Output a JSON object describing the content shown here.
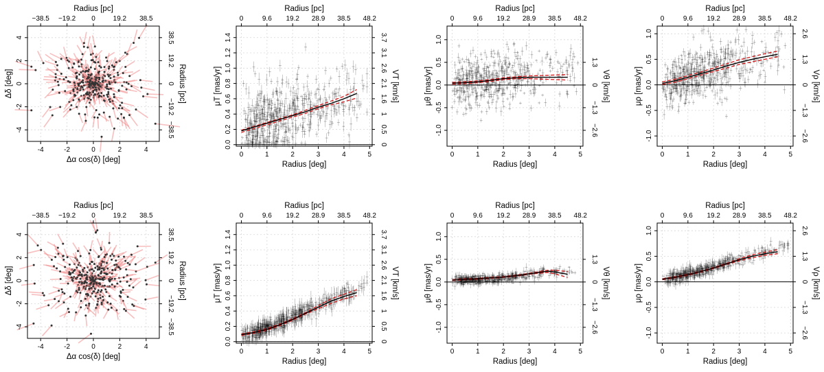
{
  "chart_data": [
    {
      "id": "top-sky",
      "type": "scatter",
      "xlabel": "Δα cos(δ) [deg]",
      "ylabel": "Δδ [deg]",
      "top_label": "Radius [pc]",
      "right_label": "Radius [pc]",
      "xlim": [
        -5,
        5
      ],
      "ylim": [
        -5,
        5
      ],
      "xticks": [
        "-4",
        "-2",
        "0",
        "2",
        "4"
      ],
      "xtick_vals": [
        -4,
        -2,
        0,
        2,
        4
      ],
      "yticks": [
        "-4",
        "-2",
        "0",
        "2",
        "4"
      ],
      "ytick_vals": [
        -4,
        -2,
        0,
        2,
        4
      ],
      "top_ticks": [
        "−38.5",
        "−19.2",
        "0",
        "19.2",
        "38.5"
      ],
      "top_tick_vals": [
        -4,
        -2,
        0,
        2,
        4
      ],
      "right_ticks": [
        "−38.5",
        "−19.2",
        "0",
        "19.2",
        "38.5"
      ],
      "right_tick_vals": [
        -4,
        -2,
        0,
        2,
        4
      ],
      "arrow_color": "#f08a8a",
      "point_color": "#333333",
      "seed": 11,
      "n_points": 380,
      "arrow_scale": 0.55
    },
    {
      "id": "top-mut",
      "type": "scatter",
      "xlabel": "Radius [deg]",
      "ylabel": "μT [mas/yr]",
      "top_label": "Radius [pc]",
      "right_label": "VT [km/s]",
      "xlim": [
        -0.2,
        5.1
      ],
      "ylim": [
        -0.02,
        1.55
      ],
      "xticks": [
        "0",
        "1",
        "2",
        "3",
        "4",
        "5"
      ],
      "xtick_vals": [
        0,
        1,
        2,
        3,
        4,
        5
      ],
      "yticks": [
        "0.0",
        "0.2",
        "0.4",
        "0.6",
        "0.8",
        "1.0",
        "1.2",
        "1.4"
      ],
      "ytick_vals": [
        0,
        0.2,
        0.4,
        0.6,
        0.8,
        1.0,
        1.2,
        1.4
      ],
      "top_ticks": [
        "0",
        "9.6",
        "19.2",
        "28.9",
        "38.5",
        "48.2"
      ],
      "top_tick_vals": [
        0,
        1,
        2,
        3,
        4,
        5
      ],
      "right_ticks": [
        "0",
        "0.5",
        "1",
        "1.6",
        "2.1",
        "2.6",
        "3.1",
        "3.7"
      ],
      "right_tick_vals": [
        0,
        0.2,
        0.4,
        0.6,
        0.8,
        1.0,
        1.2,
        1.4
      ],
      "hline": 0,
      "fit_x": [
        0,
        0.5,
        1,
        1.5,
        2,
        2.5,
        3,
        3.5,
        4,
        4.5
      ],
      "fit_black": [
        0.18,
        0.23,
        0.28,
        0.33,
        0.38,
        0.43,
        0.49,
        0.54,
        0.6,
        0.67
      ],
      "fit_red_upper": [
        0.19,
        0.24,
        0.29,
        0.34,
        0.39,
        0.45,
        0.51,
        0.57,
        0.63,
        0.72
      ],
      "fit_red_lower": [
        0.16,
        0.21,
        0.26,
        0.31,
        0.36,
        0.41,
        0.47,
        0.52,
        0.56,
        0.61
      ],
      "seed": 23,
      "n_points": 520,
      "scatter": 0.22,
      "err": 0.05,
      "mode": "lin",
      "base": 0.2,
      "slope": 0.1,
      "ymin_clip": 0.0
    },
    {
      "id": "top-mutheta",
      "type": "scatter",
      "xlabel": "Radius [deg]",
      "ylabel": "μθ [mas/yr]",
      "top_label": "Radius [pc]",
      "right_label": "Vθ [km/s]",
      "xlim": [
        -0.2,
        5.1
      ],
      "ylim": [
        -1.35,
        1.3
      ],
      "xticks": [
        "0",
        "1",
        "2",
        "3",
        "4",
        "5"
      ],
      "xtick_vals": [
        0,
        1,
        2,
        3,
        4,
        5
      ],
      "yticks": [
        "-1.0",
        "-0.5",
        "0.0",
        "0.5",
        "1.0"
      ],
      "ytick_vals": [
        -1.0,
        -0.5,
        0,
        0.5,
        1.0
      ],
      "top_ticks": [
        "0",
        "9.6",
        "19.2",
        "28.9",
        "38.5",
        "48.2"
      ],
      "top_tick_vals": [
        0,
        1,
        2,
        3,
        4,
        5
      ],
      "right_ticks": [
        "−2.6",
        "−1.3",
        "0",
        "1.3"
      ],
      "right_tick_vals": [
        -1.0,
        -0.5,
        0,
        0.5
      ],
      "hline": 0,
      "fit_x": [
        0,
        0.5,
        1,
        1.5,
        2,
        2.5,
        3,
        3.5,
        4,
        4.5
      ],
      "fit_black": [
        0.04,
        0.05,
        0.07,
        0.1,
        0.14,
        0.16,
        0.17,
        0.17,
        0.17,
        0.17
      ],
      "fit_red_upper": [
        0.06,
        0.07,
        0.09,
        0.12,
        0.16,
        0.18,
        0.2,
        0.21,
        0.22,
        0.23
      ],
      "fit_red_lower": [
        0.02,
        0.03,
        0.05,
        0.08,
        0.12,
        0.14,
        0.14,
        0.13,
        0.12,
        0.11
      ],
      "seed": 37,
      "n_points": 520,
      "scatter": 0.3,
      "err": 0.06,
      "mode": "theta",
      "base": 0.05,
      "slope": 0.03,
      "ymin_clip": -1.3
    },
    {
      "id": "top-murho",
      "type": "scatter",
      "xlabel": "Radius [deg]",
      "ylabel": "μρ [mas/yr]",
      "top_label": "Radius [pc]",
      "right_label": "Vρ [km/s]",
      "xlim": [
        -0.2,
        5.1
      ],
      "ylim": [
        -1.2,
        1.15
      ],
      "xticks": [
        "0",
        "1",
        "2",
        "3",
        "4",
        "5"
      ],
      "xtick_vals": [
        0,
        1,
        2,
        3,
        4,
        5
      ],
      "yticks": [
        "-1.0",
        "-0.5",
        "0.0",
        "0.5",
        "1.0"
      ],
      "ytick_vals": [
        -1.0,
        -0.5,
        0,
        0.5,
        1.0
      ],
      "top_ticks": [
        "0",
        "9.6",
        "19.2",
        "28.9",
        "38.5",
        "48.2"
      ],
      "top_tick_vals": [
        0,
        1,
        2,
        3,
        4,
        5
      ],
      "right_ticks": [
        "−2.6",
        "−1.3",
        "0",
        "1.3",
        "2.6"
      ],
      "right_tick_vals": [
        -1.0,
        -0.5,
        0,
        0.5,
        1.0
      ],
      "hline": 0,
      "fit_x": [
        0,
        0.5,
        1,
        1.5,
        2,
        2.5,
        3,
        3.5,
        4,
        4.5
      ],
      "fit_black": [
        0.03,
        0.08,
        0.15,
        0.22,
        0.29,
        0.37,
        0.44,
        0.5,
        0.55,
        0.6
      ],
      "fit_red_upper": [
        0.06,
        0.11,
        0.18,
        0.25,
        0.33,
        0.41,
        0.49,
        0.55,
        0.61,
        0.66
      ],
      "fit_red_lower": [
        0.01,
        0.05,
        0.12,
        0.19,
        0.26,
        0.33,
        0.4,
        0.45,
        0.5,
        0.55
      ],
      "seed": 51,
      "n_points": 520,
      "scatter": 0.25,
      "err": 0.06,
      "mode": "lin",
      "base": 0.02,
      "slope": 0.14,
      "ymin_clip": -1.1
    },
    {
      "id": "bottom-sky",
      "type": "scatter",
      "xlabel": "Δα cos(δ) [deg]",
      "ylabel": "Δδ [deg]",
      "top_label": "Radius [pc]",
      "right_label": "Radius [pc]",
      "xlim": [
        -5,
        5
      ],
      "ylim": [
        -5,
        5
      ],
      "xticks": [
        "-4",
        "-2",
        "0",
        "2",
        "4"
      ],
      "xtick_vals": [
        -4,
        -2,
        0,
        2,
        4
      ],
      "yticks": [
        "-4",
        "-2",
        "0",
        "2",
        "4"
      ],
      "ytick_vals": [
        -4,
        -2,
        0,
        2,
        4
      ],
      "top_ticks": [
        "−38.5",
        "−19.2",
        "0",
        "19.2",
        "38.5"
      ],
      "top_tick_vals": [
        -4,
        -2,
        0,
        2,
        4
      ],
      "right_ticks": [
        "−38.5",
        "−19.2",
        "0",
        "19.2",
        "38.5"
      ],
      "right_tick_vals": [
        -4,
        -2,
        0,
        2,
        4
      ],
      "arrow_color": "#f08a8a",
      "point_color": "#333333",
      "seed": 67,
      "n_points": 380,
      "arrow_scale": 0.5
    },
    {
      "id": "bottom-mut",
      "type": "scatter",
      "xlabel": "Radius [deg]",
      "ylabel": "μT [mas/yr]",
      "top_label": "Radius [pc]",
      "right_label": "VT [km/s]",
      "xlim": [
        -0.2,
        5.1
      ],
      "ylim": [
        -0.02,
        1.55
      ],
      "xticks": [
        "0",
        "1",
        "2",
        "3",
        "4",
        "5"
      ],
      "xtick_vals": [
        0,
        1,
        2,
        3,
        4,
        5
      ],
      "yticks": [
        "0.0",
        "0.2",
        "0.4",
        "0.6",
        "0.8",
        "1.0",
        "1.2",
        "1.4"
      ],
      "ytick_vals": [
        0,
        0.2,
        0.4,
        0.6,
        0.8,
        1.0,
        1.2,
        1.4
      ],
      "top_ticks": [
        "0",
        "9.6",
        "19.2",
        "28.9",
        "38.5",
        "48.2"
      ],
      "top_tick_vals": [
        0,
        1,
        2,
        3,
        4,
        5
      ],
      "right_ticks": [
        "0",
        "0.5",
        "1",
        "1.6",
        "2.1",
        "2.6",
        "3.1",
        "3.7"
      ],
      "right_tick_vals": [
        0,
        0.2,
        0.4,
        0.6,
        0.8,
        1.0,
        1.2,
        1.4
      ],
      "hline": 0,
      "fit_x": [
        0,
        0.5,
        1,
        1.5,
        2,
        2.5,
        3,
        3.5,
        4,
        4.5
      ],
      "fit_black": [
        0.09,
        0.12,
        0.16,
        0.22,
        0.29,
        0.37,
        0.45,
        0.53,
        0.59,
        0.64
      ],
      "fit_red_upper": [
        0.1,
        0.13,
        0.17,
        0.23,
        0.3,
        0.38,
        0.47,
        0.56,
        0.62,
        0.68
      ],
      "fit_red_lower": [
        0.08,
        0.11,
        0.15,
        0.21,
        0.28,
        0.36,
        0.43,
        0.5,
        0.56,
        0.6
      ],
      "seed": 79,
      "n_points": 480,
      "scatter": 0.05,
      "err": 0.06,
      "mode": "curve",
      "base": 0.09,
      "slope": 0.12,
      "ymin_clip": 0.0
    },
    {
      "id": "bottom-mutheta",
      "type": "scatter",
      "xlabel": "Radius [deg]",
      "ylabel": "μθ [mas/yr]",
      "top_label": "Radius [pc]",
      "right_label": "Vθ [km/s]",
      "xlim": [
        -0.2,
        5.1
      ],
      "ylim": [
        -1.35,
        1.3
      ],
      "xticks": [
        "0",
        "1",
        "2",
        "3",
        "4",
        "5"
      ],
      "xtick_vals": [
        0,
        1,
        2,
        3,
        4,
        5
      ],
      "yticks": [
        "-1.0",
        "-0.5",
        "0.0",
        "0.5",
        "1.0"
      ],
      "ytick_vals": [
        -1.0,
        -0.5,
        0,
        0.5,
        1.0
      ],
      "top_ticks": [
        "0",
        "9.6",
        "19.2",
        "28.9",
        "38.5",
        "48.2"
      ],
      "top_tick_vals": [
        0,
        1,
        2,
        3,
        4,
        5
      ],
      "right_ticks": [
        "−2.6",
        "−1.3",
        "0",
        "1.3"
      ],
      "right_tick_vals": [
        -1.0,
        -0.5,
        0,
        0.5
      ],
      "hline": 0,
      "fit_x": [
        0,
        0.5,
        1,
        1.5,
        2,
        2.5,
        3,
        3.5,
        3.75,
        4,
        4.5
      ],
      "fit_black": [
        0.04,
        0.06,
        0.07,
        0.09,
        0.11,
        0.14,
        0.18,
        0.22,
        0.24,
        0.22,
        0.17
      ],
      "fit_red_upper": [
        0.05,
        0.07,
        0.08,
        0.1,
        0.12,
        0.15,
        0.19,
        0.24,
        0.26,
        0.26,
        0.23
      ],
      "fit_red_lower": [
        0.03,
        0.05,
        0.06,
        0.08,
        0.1,
        0.13,
        0.17,
        0.2,
        0.21,
        0.18,
        0.1
      ],
      "seed": 93,
      "n_points": 480,
      "scatter": 0.05,
      "err": 0.05,
      "mode": "theta2",
      "base": 0.04,
      "slope": 0.04,
      "ymin_clip": -1.3
    },
    {
      "id": "bottom-murho",
      "type": "scatter",
      "xlabel": "Radius [deg]",
      "ylabel": "μρ [mas/yr]",
      "top_label": "Radius [pc]",
      "right_label": "Vρ [km/s]",
      "xlim": [
        -0.2,
        5.1
      ],
      "ylim": [
        -1.2,
        1.15
      ],
      "xticks": [
        "0",
        "1",
        "2",
        "3",
        "4",
        "5"
      ],
      "xtick_vals": [
        0,
        1,
        2,
        3,
        4,
        5
      ],
      "yticks": [
        "-1.0",
        "-0.5",
        "0.0",
        "0.5",
        "1.0"
      ],
      "ytick_vals": [
        -1.0,
        -0.5,
        0,
        0.5,
        1.0
      ],
      "top_ticks": [
        "0",
        "9.6",
        "19.2",
        "28.9",
        "38.5",
        "48.2"
      ],
      "top_tick_vals": [
        0,
        1,
        2,
        3,
        4,
        5
      ],
      "right_ticks": [
        "−2.6",
        "−1.3",
        "0",
        "1.3",
        "2.6"
      ],
      "right_tick_vals": [
        -1.0,
        -0.5,
        0,
        0.5,
        1.0
      ],
      "hline": 0,
      "fit_x": [
        0,
        0.5,
        1,
        1.5,
        2,
        2.5,
        3,
        3.5,
        4,
        4.5
      ],
      "fit_black": [
        0.05,
        0.09,
        0.14,
        0.2,
        0.27,
        0.35,
        0.43,
        0.5,
        0.55,
        0.59
      ],
      "fit_red_upper": [
        0.06,
        0.1,
        0.15,
        0.21,
        0.28,
        0.36,
        0.45,
        0.53,
        0.58,
        0.63
      ],
      "fit_red_lower": [
        0.04,
        0.08,
        0.13,
        0.19,
        0.26,
        0.34,
        0.41,
        0.47,
        0.52,
        0.55
      ],
      "seed": 107,
      "n_points": 480,
      "scatter": 0.06,
      "err": 0.06,
      "mode": "curve",
      "base": 0.05,
      "slope": 0.12,
      "ymin_clip": -1.1
    }
  ]
}
